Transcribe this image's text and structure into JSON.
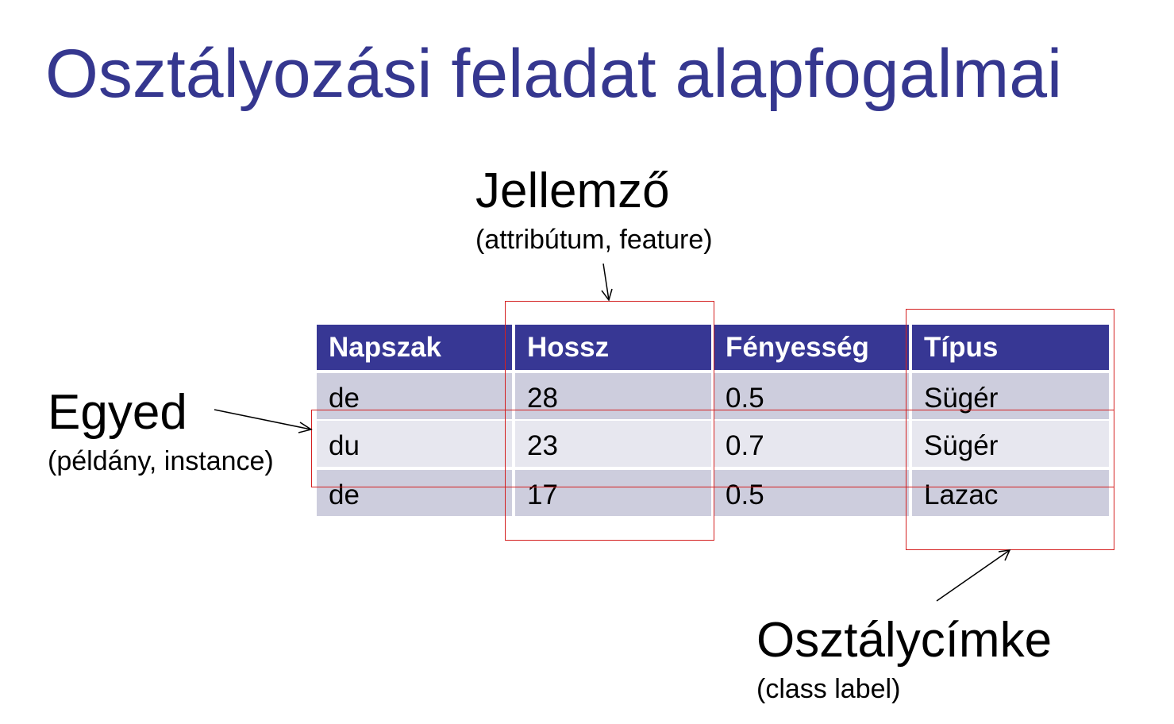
{
  "title": "Osztályozási feladat alapfogalmai",
  "feature": {
    "label": "Jellemző",
    "sub": "(attribútum, feature)"
  },
  "instance": {
    "label": "Egyed",
    "sub": "(példány, instance)"
  },
  "class_label": {
    "label": "Osztálycímke",
    "sub": "(class label)"
  },
  "table": {
    "headers": [
      "Napszak",
      "Hossz",
      "Fényesség",
      "Típus"
    ],
    "rows": [
      [
        "de",
        "28",
        "0.5",
        "Sügér"
      ],
      [
        "du",
        "23",
        "0.7",
        "Sügér"
      ],
      [
        "de",
        "17",
        "0.5",
        "Lazac"
      ]
    ]
  },
  "colors": {
    "title": "#35378f",
    "header_bg": "#373794",
    "row_dark": "#cdcddd",
    "row_light": "#e7e7ef",
    "highlight": "#d42020"
  }
}
